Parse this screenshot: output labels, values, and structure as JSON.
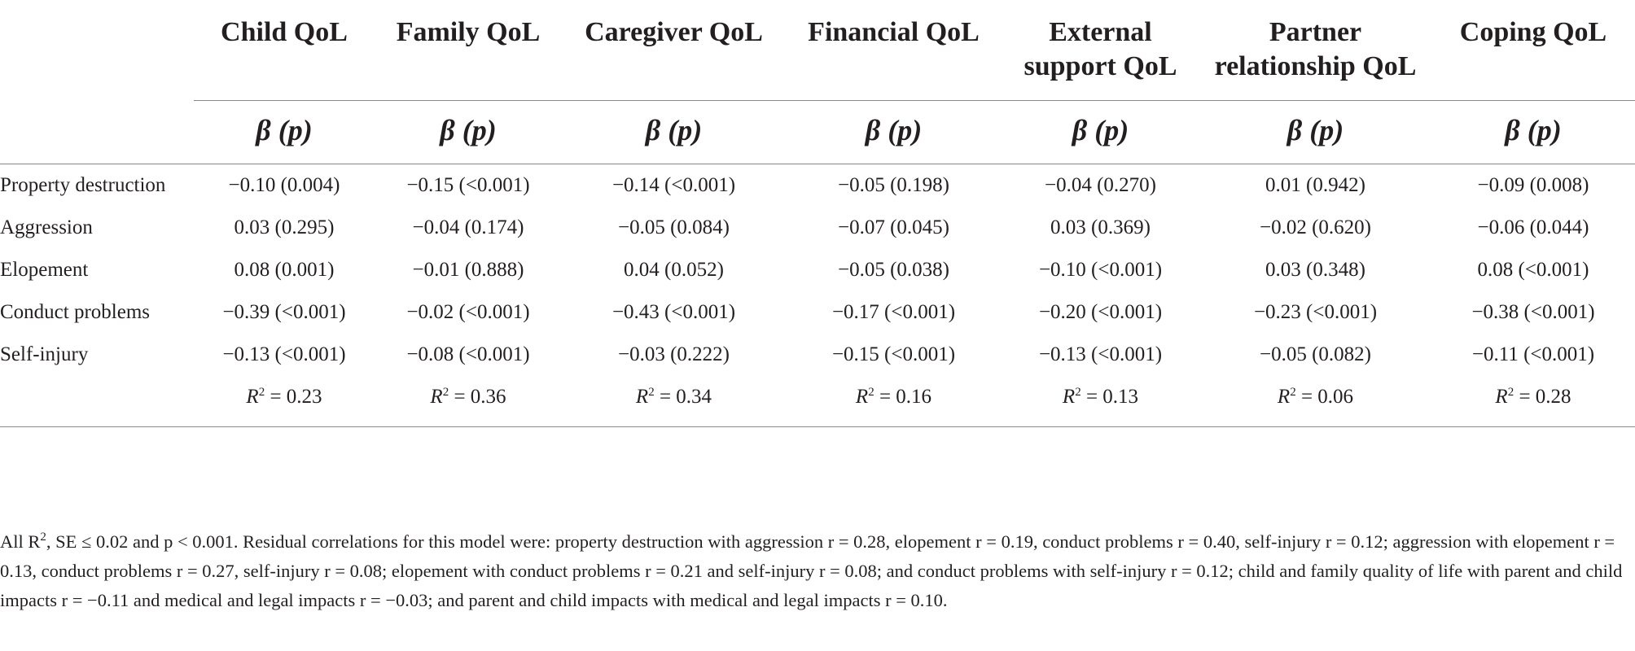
{
  "header": {
    "columns": [
      "Child QoL",
      "Family QoL",
      "Caregiver QoL",
      "Financial QoL",
      "External support QoL",
      "Partner relationship QoL",
      "Coping QoL"
    ],
    "column_lines": [
      [
        "Child QoL",
        ""
      ],
      [
        "Family QoL",
        ""
      ],
      [
        "Caregiver QoL",
        ""
      ],
      [
        "Financial QoL",
        ""
      ],
      [
        "External",
        "support QoL"
      ],
      [
        "Partner",
        "relationship QoL"
      ],
      [
        "Coping QoL",
        ""
      ]
    ],
    "stat_label": "β (p)"
  },
  "rows": [
    {
      "label": "Property destruction",
      "values": [
        "−0.10 (0.004)",
        "−0.15 (<0.001)",
        "−0.14 (<0.001)",
        "−0.05 (0.198)",
        "−0.04 (0.270)",
        "0.01 (0.942)",
        "−0.09 (0.008)"
      ]
    },
    {
      "label": "Aggression",
      "values": [
        "0.03 (0.295)",
        "−0.04 (0.174)",
        "−0.05 (0.084)",
        "−0.07 (0.045)",
        "0.03 (0.369)",
        "−0.02 (0.620)",
        "−0.06 (0.044)"
      ]
    },
    {
      "label": "Elopement",
      "values": [
        "0.08 (0.001)",
        "−0.01 (0.888)",
        "0.04 (0.052)",
        "−0.05 (0.038)",
        "−0.10 (<0.001)",
        "0.03 (0.348)",
        "0.08 (<0.001)"
      ]
    },
    {
      "label": "Conduct problems",
      "values": [
        "−0.39 (<0.001)",
        "−0.02 (<0.001)",
        "−0.43 (<0.001)",
        "−0.17 (<0.001)",
        "−0.20 (<0.001)",
        "−0.23 (<0.001)",
        "−0.38 (<0.001)"
      ]
    },
    {
      "label": "Self-injury",
      "values": [
        "−0.13 (<0.001)",
        "−0.08 (<0.001)",
        "−0.03 (0.222)",
        "−0.15 (<0.001)",
        "−0.13 (<0.001)",
        "−0.05 (0.082)",
        "−0.11 (<0.001)"
      ]
    }
  ],
  "r_squared": {
    "symbol": "R",
    "exponent": "2",
    "values": [
      "= 0.23",
      "= 0.36",
      "= 0.34",
      "= 0.16",
      "= 0.13",
      "= 0.06",
      "= 0.28"
    ]
  },
  "footnote": {
    "prefix": "All R",
    "prefix_sup": "2",
    "text": ", SE ≤ 0.02 and p < 0.001. Residual correlations for this model were: property destruction with aggression r = 0.28, elopement r = 0.19, conduct problems r = 0.40, self-injury r = 0.12; aggression with elopement r = 0.13, conduct problems r = 0.27, self-injury r = 0.08; elopement with conduct problems r = 0.21 and self-injury r = 0.08; and conduct problems with self-injury r = 0.12; child and family quality of life with parent and child impacts r = −0.11 and medical and legal impacts r = −0.03; and parent and child impacts with medical and legal impacts r = 0.10."
  }
}
